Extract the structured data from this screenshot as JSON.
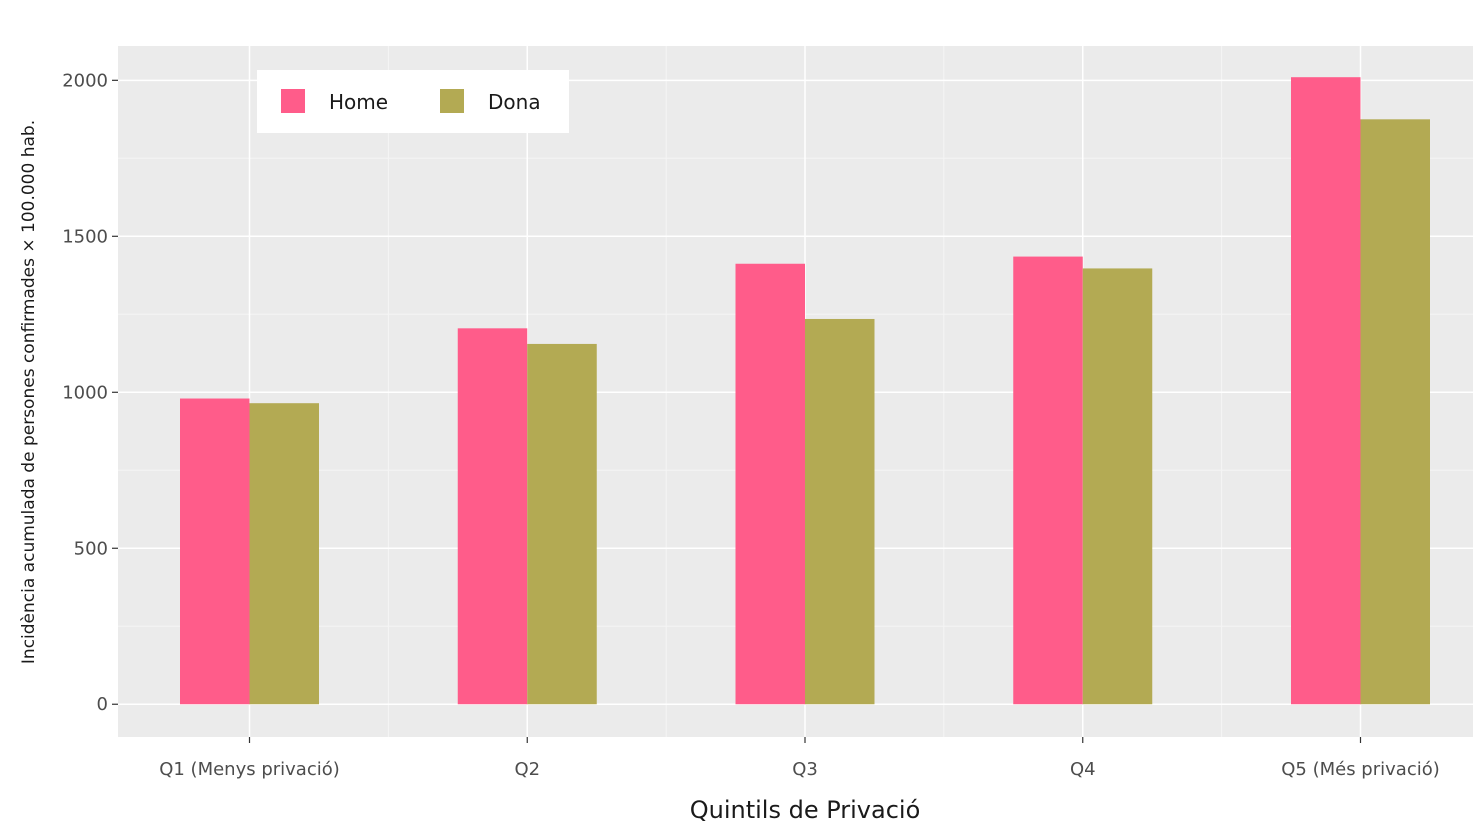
{
  "chart_data": {
    "type": "bar",
    "categories": [
      "Q1 (Menys privació)",
      "Q2",
      "Q3",
      "Q4",
      "Q5 (Més privació)"
    ],
    "series": [
      {
        "name": "Home",
        "color": "#ff5c8a",
        "values": [
          980,
          1205,
          1412,
          1435,
          2010
        ]
      },
      {
        "name": "Dona",
        "color": "#b3aa53",
        "values": [
          965,
          1155,
          1235,
          1397,
          1875
        ]
      }
    ],
    "xlabel": "Quintils de Privació",
    "ylabel": "Incidència acumulada de persones confirmades × 100.000 hab.",
    "ylim": [
      -105,
      2110
    ],
    "yticks": [
      0,
      500,
      1000,
      1500,
      2000
    ],
    "grid": true,
    "panel_background": "#ebebeb",
    "legend_position": "top-left"
  }
}
